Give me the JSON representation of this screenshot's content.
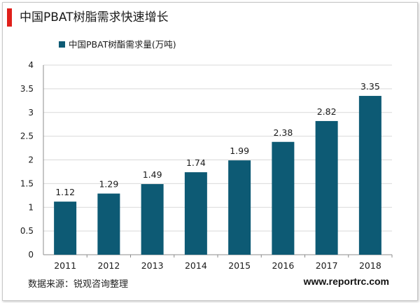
{
  "header": {
    "title": "中国PBAT树脂需求快速增长"
  },
  "footer": {
    "source": "数据来源：锐观咨询整理",
    "website": "www.reportrc.com"
  },
  "colors": {
    "accent": "#e0201b",
    "bar": "#0d5a74",
    "grid": "#d9d9d9"
  },
  "chart_data": {
    "type": "bar",
    "categories": [
      "2011",
      "2012",
      "2013",
      "2014",
      "2015",
      "2016",
      "2017",
      "2018"
    ],
    "series": [
      {
        "name": "中国PBAT树酯需求量(万吨)",
        "values": [
          1.12,
          1.29,
          1.49,
          1.74,
          1.99,
          2.38,
          2.82,
          3.35
        ]
      }
    ],
    "value_labels": [
      "1.12",
      "1.29",
      "1.49",
      "1.74",
      "1.99",
      "2.38",
      "2.82",
      "3.35"
    ],
    "yticks": [
      "0",
      "0.5",
      "1",
      "1.5",
      "2",
      "2.5",
      "3",
      "3.5",
      "4"
    ],
    "ylim": [
      0,
      4
    ],
    "legend_position": "top-left",
    "grid": true
  }
}
